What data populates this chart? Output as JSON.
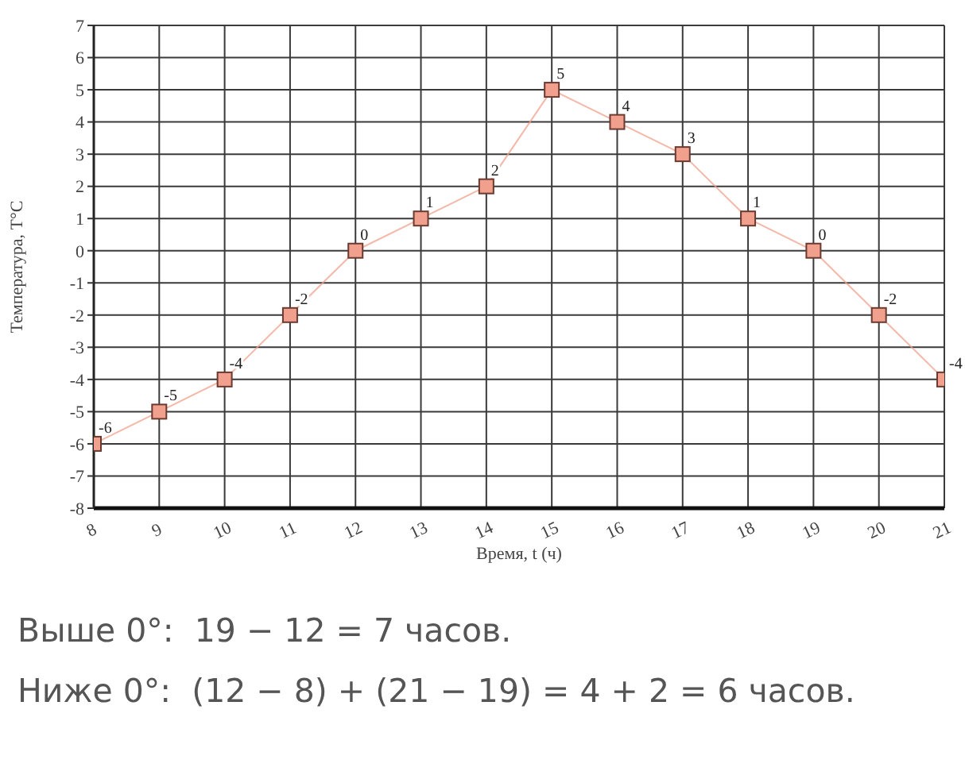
{
  "chart_data": {
    "type": "line",
    "xlabel": "Время, t (ч)",
    "ylabel": "Температура, T°C",
    "x": [
      8,
      9,
      10,
      11,
      12,
      13,
      14,
      15,
      16,
      17,
      18,
      19,
      20,
      21
    ],
    "values": [
      -6,
      -5,
      -4,
      -2,
      0,
      1,
      2,
      5,
      4,
      3,
      1,
      0,
      -2,
      -4
    ],
    "color": "#f0a08c",
    "marker": "square",
    "data_labels": true,
    "grid": true,
    "xlim": [
      8,
      21
    ],
    "xticks": [
      8,
      9,
      10,
      11,
      12,
      13,
      14,
      15,
      16,
      17,
      18,
      19,
      20,
      21
    ],
    "ylim": [
      -8,
      7
    ],
    "yticks": [
      -8,
      -7,
      -6,
      -5,
      -4,
      -3,
      -2,
      -1,
      0,
      1,
      2,
      3,
      4,
      5,
      6,
      7
    ],
    "annotations": [
      "Выше 0°:  19 − 12 = 7 часов.",
      "Ниже 0°:  (12 − 8) + (21 − 19) = 4 + 2 = 6 часов."
    ]
  }
}
